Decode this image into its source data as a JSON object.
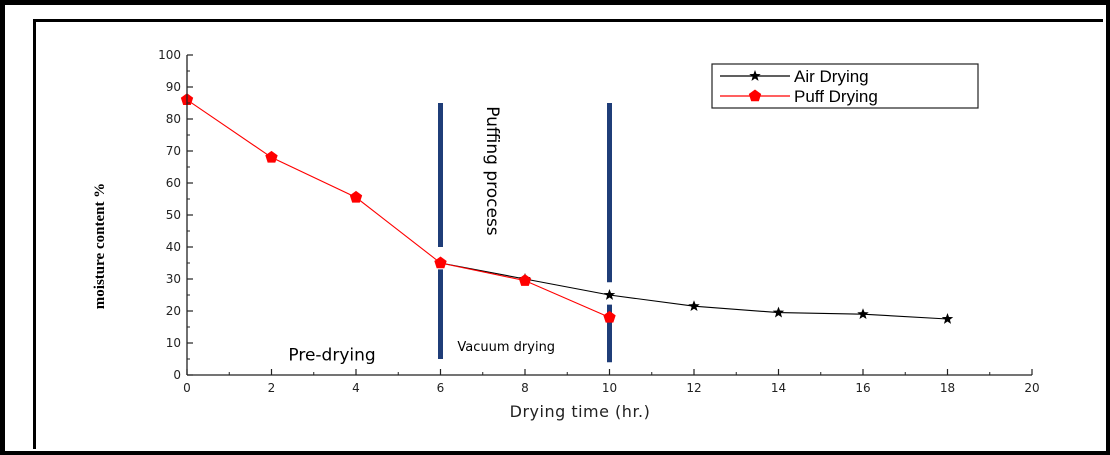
{
  "chart_data": {
    "type": "line",
    "xlabel": "Drying time (hr.)",
    "ylabel": "moisture content %",
    "xlim": [
      0,
      20
    ],
    "ylim": [
      0,
      100
    ],
    "xticks": [
      0,
      2,
      4,
      6,
      8,
      10,
      12,
      14,
      16,
      18,
      20
    ],
    "yticks": [
      0,
      10,
      20,
      30,
      40,
      50,
      60,
      70,
      80,
      90,
      100
    ],
    "legend_position": "top-right",
    "series": [
      {
        "name": "Air Drying",
        "color": "#000000",
        "marker": "star",
        "x": [
          6,
          8,
          10,
          12,
          14,
          16,
          18
        ],
        "y": [
          35,
          30,
          25,
          21.5,
          19.5,
          19,
          17.5
        ]
      },
      {
        "name": "Puff Drying",
        "color": "#ff0000",
        "marker": "pentagon",
        "x": [
          0,
          2,
          4,
          6,
          8,
          10
        ],
        "y": [
          86,
          68,
          55.5,
          35,
          29.5,
          18
        ]
      }
    ],
    "phase_lines": {
      "color": "#1f3d78",
      "segments": [
        {
          "x": 6,
          "y_from": 85,
          "y_to": 40
        },
        {
          "x": 6,
          "y_from": 33,
          "y_to": 5
        },
        {
          "x": 10,
          "y_from": 85,
          "y_to": 29
        },
        {
          "x": 10,
          "y_from": 22,
          "y_to": 4
        }
      ]
    },
    "annotations": [
      {
        "text": "Puffing process",
        "x": 7.1,
        "y": 84,
        "rotate": 90,
        "size": 17
      },
      {
        "text": "Pre-drying",
        "x": 2.4,
        "y": 4.5,
        "rotate": 0,
        "size": 17
      },
      {
        "text": "Vacuum drying",
        "x": 6.4,
        "y": 7.5,
        "rotate": 0,
        "size": 13
      }
    ]
  }
}
